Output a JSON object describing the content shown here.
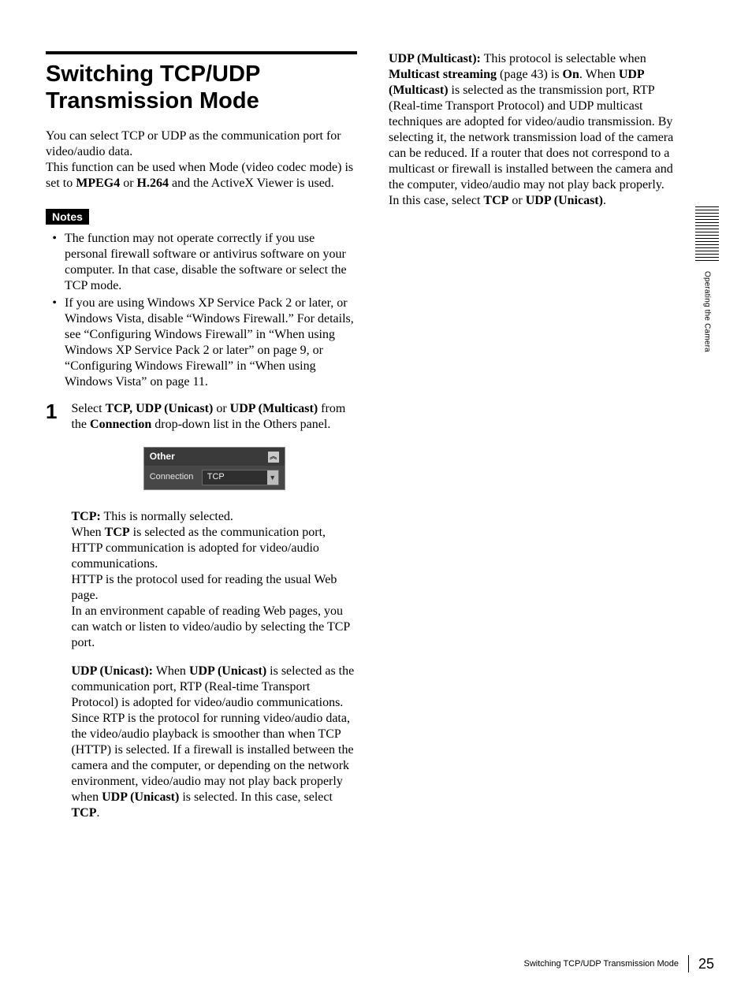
{
  "page": {
    "number": "25",
    "footer_title": "Switching TCP/UDP Transmission Mode",
    "side_tab": "Operating the Camera"
  },
  "heading": "Switching TCP/UDP Transmission Mode",
  "intro": {
    "line1": "You can select TCP or UDP as the communication port for video/audio data.",
    "line2a": "This function can be used when Mode (video codec mode) is set to ",
    "b1": "MPEG4",
    "mid": " or ",
    "b2": "H.264",
    "line2b": " and the ActiveX Viewer is used."
  },
  "notes_label": "Notes",
  "notes": [
    "The function may not operate correctly if you use personal firewall software or antivirus software on your computer.  In that case, disable the software or select the TCP mode.",
    "If you are using Windows XP Service Pack 2 or later, or Windows Vista, disable “Windows Firewall.” For details, see “Configuring Windows Firewall” in “When using Windows XP Service Pack 2 or later” on page 9, or “Configuring Windows Firewall” in “When using Windows Vista” on page 11."
  ],
  "step": {
    "num": "1",
    "p1": "Select ",
    "b1": "TCP, UDP (Unicast)",
    "p2": " or ",
    "b2": "UDP (Multicast)",
    "p3": " from the ",
    "b3": "Connection",
    "p4": " drop-down list in the Others panel."
  },
  "panel": {
    "header": "Other",
    "row_label": "Connection",
    "row_value": "TCP"
  },
  "tcp": {
    "b1": "TCP:",
    "t1": " This is normally selected.",
    "t2a": "When ",
    "b2": "TCP",
    "t2b": " is selected as the communication port, HTTP communication is adopted for video/audio communications.",
    "t3": "HTTP is the protocol used for reading the usual Web page.",
    "t4": "In an environment capable of reading Web pages, you can watch or listen to video/audio by selecting the TCP port."
  },
  "unicast": {
    "b1": "UDP (Unicast):",
    "t1": " When ",
    "b2": "UDP (Unicast)",
    "t2": " is selected as the communication port, RTP (Real-time Transport Protocol) is adopted for video/audio communications. Since RTP is the protocol for running video/audio data, the video/audio playback is  smoother than when TCP (HTTP) is selected. If a firewall is installed between the camera and the computer, or depending on the network environment, video/audio may not play back properly when ",
    "b3": "UDP (Unicast)",
    "t3": " is selected. In this case, select ",
    "b4": "TCP",
    "t4": "."
  },
  "multicast": {
    "b1": "UDP (Multicast):",
    "t1": " This protocol is selectable when ",
    "b2": "Multicast streaming",
    "t2": " (page 43) is ",
    "b3": "On",
    "t3": ". When ",
    "b4": "UDP (Multicast)",
    "t4": " is selected as the transmission port, RTP (Real-time Transport Protocol) and UDP multicast techniques are adopted for video/audio transmission. By selecting it, the network transmission load of the camera can be reduced. If a router that does not correspond to a multicast or firewall is installed between the camera and the computer, video/audio may not play back properly. In this case, select ",
    "b5": "TCP",
    "t5": " or ",
    "b6": "UDP (Unicast)",
    "t6": "."
  }
}
